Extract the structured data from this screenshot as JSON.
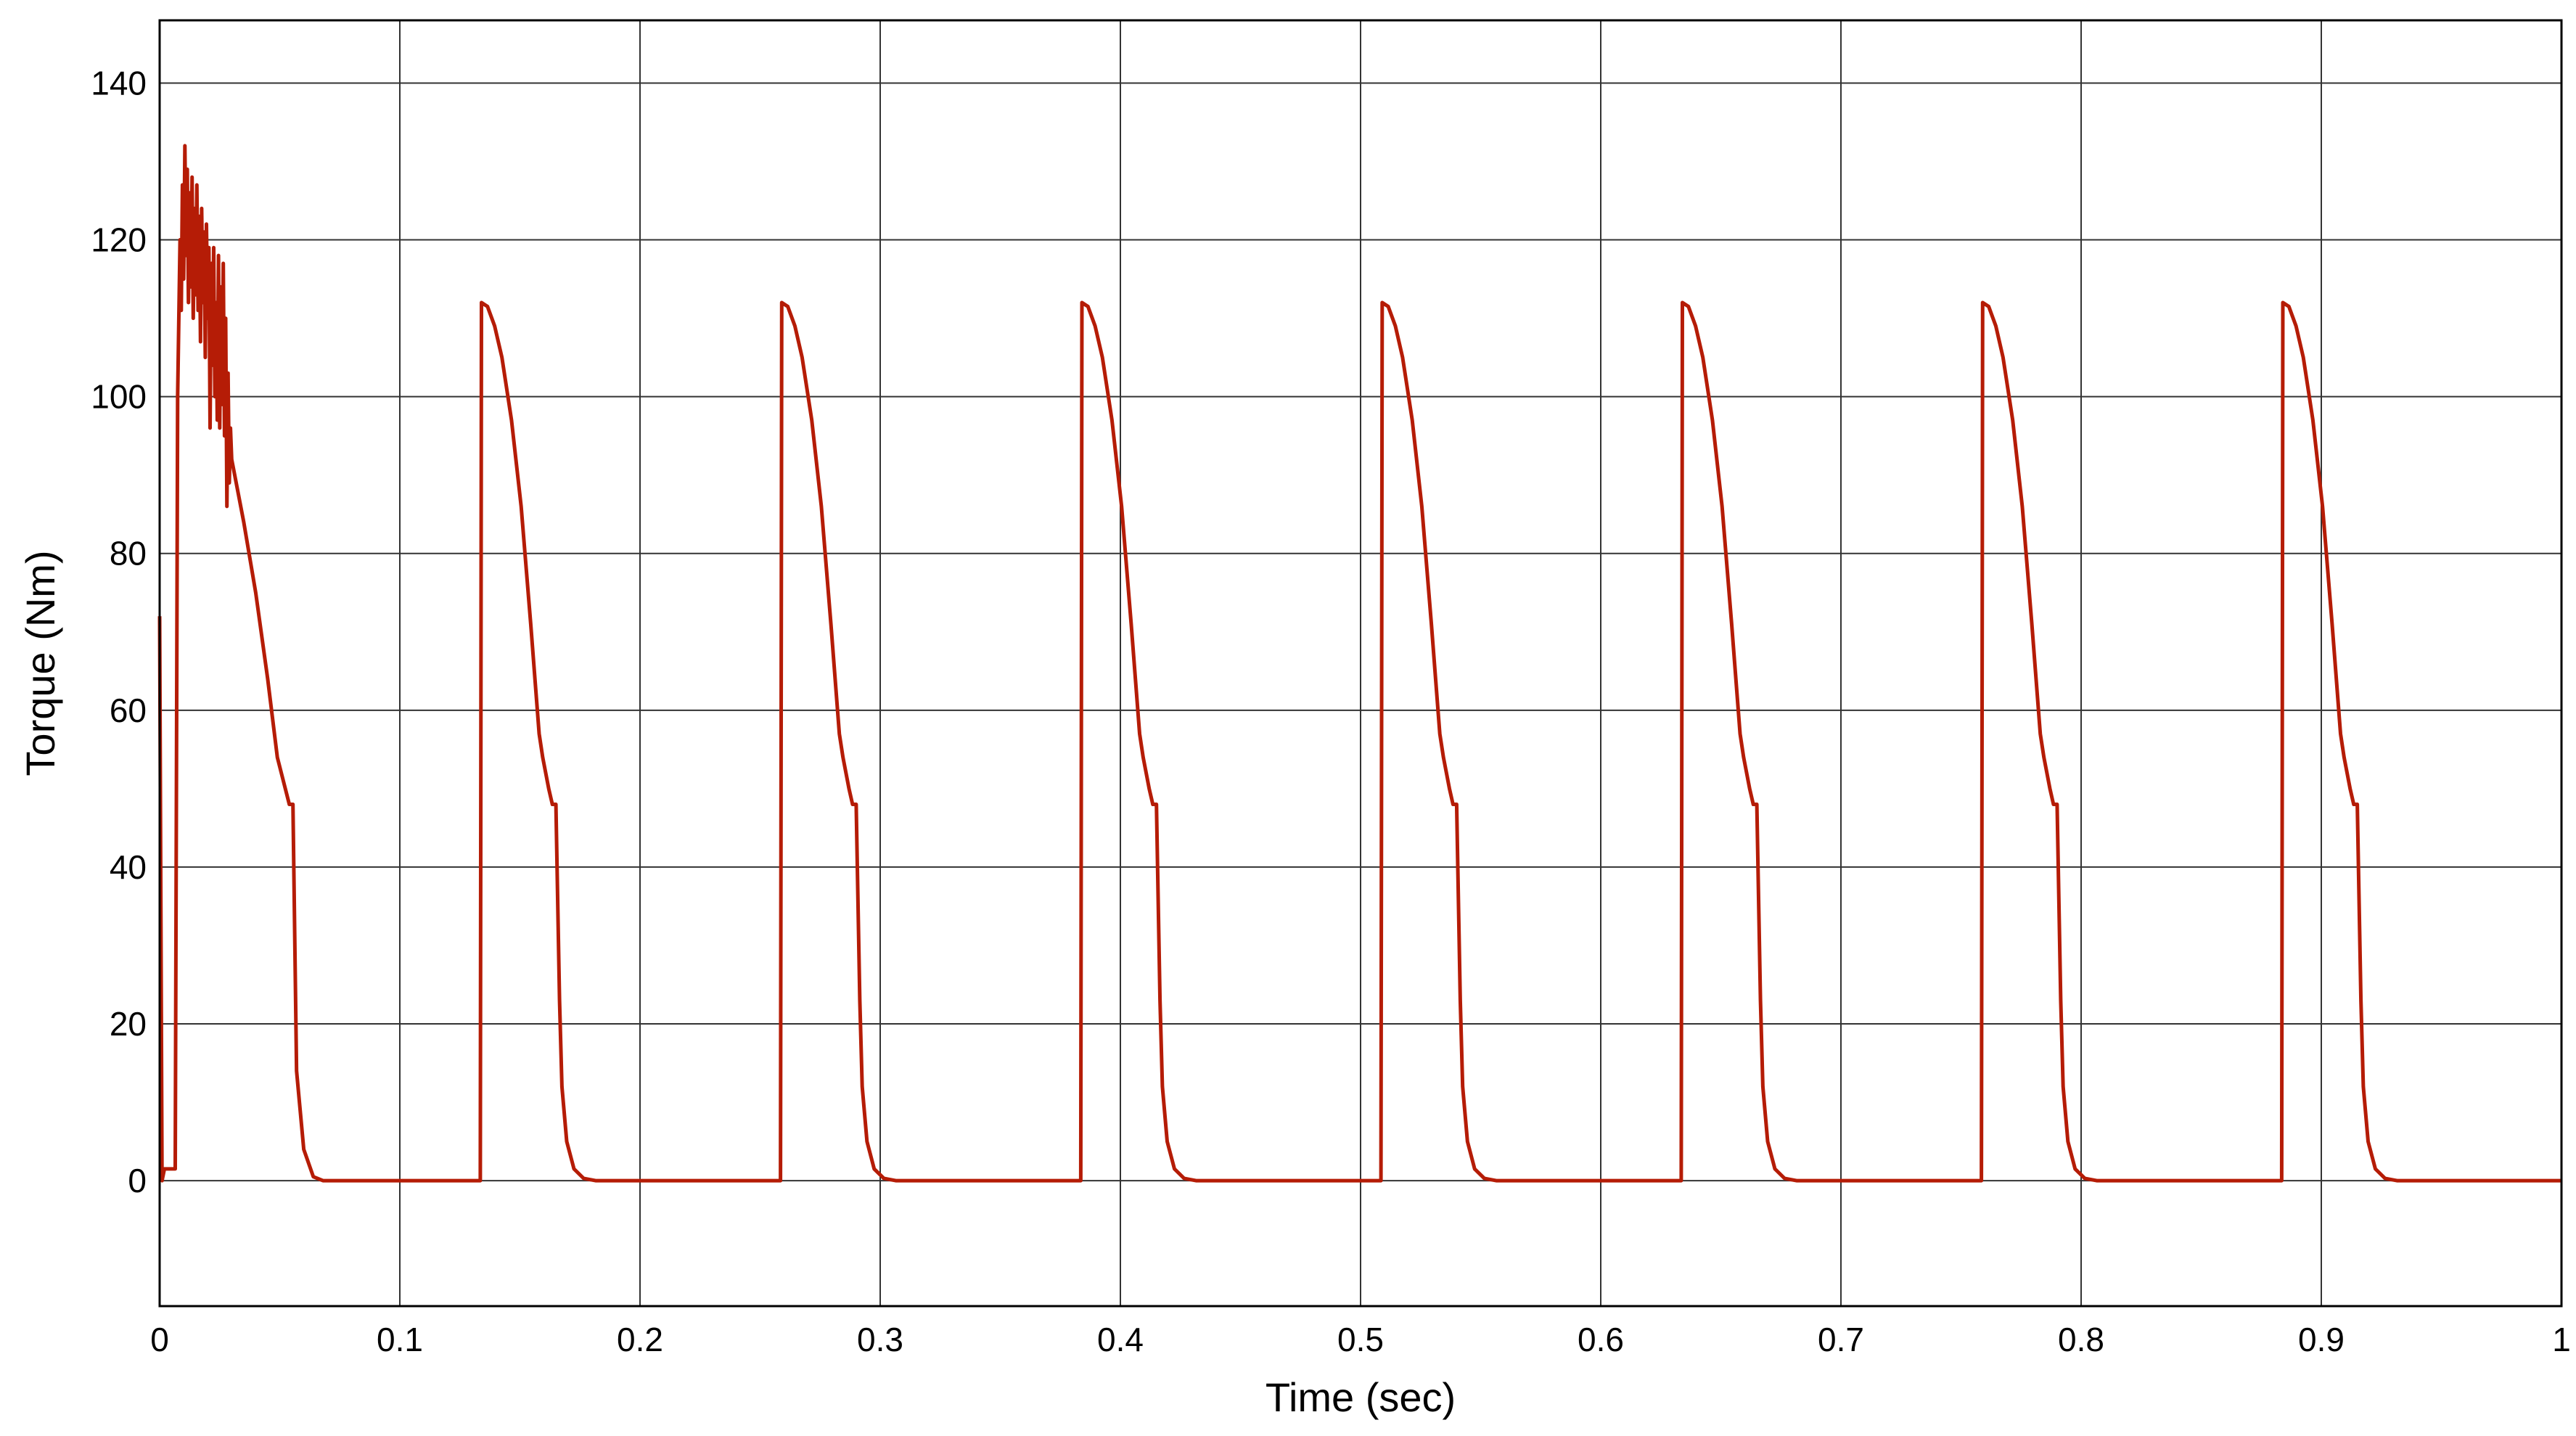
{
  "chart_data": {
    "type": "line",
    "title": "",
    "xlabel": "Time (sec)",
    "ylabel": "Torque (Nm)",
    "xlim": [
      0,
      1
    ],
    "ylim": [
      -16,
      148
    ],
    "xticks": [
      0,
      0.1,
      0.2,
      0.3,
      0.4,
      0.5,
      0.6,
      0.7,
      0.8,
      0.9,
      1
    ],
    "xtick_labels": [
      "0",
      "0.1",
      "0.2",
      "0.3",
      "0.4",
      "0.5",
      "0.6",
      "0.7",
      "0.8",
      "0.9",
      "1"
    ],
    "yticks": [
      0,
      20,
      40,
      60,
      80,
      100,
      120,
      140
    ],
    "ytick_labels": [
      "0",
      "20",
      "40",
      "60",
      "80",
      "100",
      "120",
      "140"
    ],
    "grid": true,
    "series_color": "#b51c06",
    "series": [
      {
        "startup": [
          [
            0,
            72
          ],
          [
            0.001,
            0
          ],
          [
            0.002,
            1.5
          ],
          [
            0.0065,
            1.5
          ],
          [
            0.0075,
            100
          ],
          [
            0.0085,
            120
          ],
          [
            0.009,
            111
          ],
          [
            0.0095,
            127
          ],
          [
            0.01,
            115
          ],
          [
            0.0105,
            132
          ],
          [
            0.011,
            118
          ],
          [
            0.0115,
            129
          ],
          [
            0.012,
            112
          ],
          [
            0.0125,
            126
          ],
          [
            0.013,
            114
          ],
          [
            0.0135,
            128
          ],
          [
            0.014,
            110
          ],
          [
            0.0145,
            124
          ],
          [
            0.015,
            113
          ],
          [
            0.0155,
            127
          ],
          [
            0.016,
            111
          ],
          [
            0.0165,
            123
          ],
          [
            0.017,
            107
          ],
          [
            0.0175,
            124
          ],
          [
            0.018,
            112
          ],
          [
            0.0185,
            121
          ],
          [
            0.019,
            105
          ],
          [
            0.0195,
            122
          ],
          [
            0.02,
            110
          ],
          [
            0.0205,
            119
          ],
          [
            0.021,
            96
          ],
          [
            0.0215,
            117
          ],
          [
            0.022,
            104
          ],
          [
            0.0225,
            119
          ],
          [
            0.023,
            100
          ],
          [
            0.0235,
            112
          ],
          [
            0.024,
            97
          ],
          [
            0.0245,
            118
          ],
          [
            0.025,
            96
          ],
          [
            0.0255,
            114
          ],
          [
            0.026,
            99
          ],
          [
            0.0265,
            117
          ],
          [
            0.027,
            95
          ],
          [
            0.0275,
            110
          ],
          [
            0.028,
            86
          ],
          [
            0.0285,
            103
          ],
          [
            0.029,
            89
          ],
          [
            0.0295,
            96
          ],
          [
            0.03,
            92
          ],
          [
            0.035,
            84
          ],
          [
            0.04,
            75
          ],
          [
            0.045,
            64
          ],
          [
            0.049,
            54
          ],
          [
            0.054,
            48
          ],
          [
            0.0555,
            48
          ],
          [
            0.057,
            14
          ],
          [
            0.06,
            4
          ],
          [
            0.064,
            0.5
          ],
          [
            0.068,
            0
          ],
          [
            0.1335,
            0
          ]
        ],
        "cycle_period": 0.125,
        "cycle_count": 7,
        "cycle_start": 0.1335,
        "cycle_shape": [
          [
            0,
            0
          ],
          [
            0.0005,
            112
          ],
          [
            0.003,
            111.5
          ],
          [
            0.006,
            109
          ],
          [
            0.009,
            105
          ],
          [
            0.013,
            97
          ],
          [
            0.017,
            86
          ],
          [
            0.021,
            71
          ],
          [
            0.0245,
            57
          ],
          [
            0.026,
            54
          ],
          [
            0.0285,
            50
          ],
          [
            0.03,
            48
          ],
          [
            0.0315,
            48
          ],
          [
            0.033,
            23
          ],
          [
            0.034,
            12
          ],
          [
            0.036,
            5
          ],
          [
            0.039,
            1.5
          ],
          [
            0.043,
            0.3
          ],
          [
            0.048,
            0
          ],
          [
            0.125,
            0
          ]
        ]
      }
    ]
  }
}
